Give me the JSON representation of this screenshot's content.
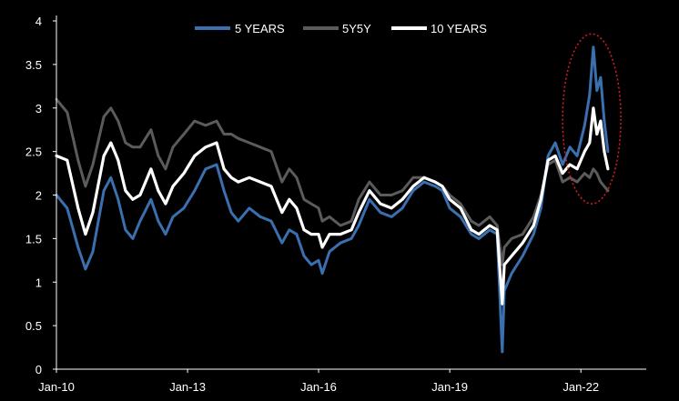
{
  "chart_data": {
    "type": "line",
    "title": "",
    "xlabel": "",
    "ylabel": "",
    "x_range": [
      "2010-01-01",
      "2023-07-01"
    ],
    "ylim": [
      0,
      4
    ],
    "yticks": [
      "0",
      "0.5",
      "1",
      "1.5",
      "2",
      "2.5",
      "3",
      "3.5",
      "4"
    ],
    "xticks": [
      {
        "label": "Jan-10",
        "date": "2010-01-01"
      },
      {
        "label": "Jan-13",
        "date": "2013-01-01"
      },
      {
        "label": "Jan-16",
        "date": "2016-01-01"
      },
      {
        "label": "Jan-19",
        "date": "2019-01-01"
      },
      {
        "label": "Jan-22",
        "date": "2022-01-01"
      }
    ],
    "grid": false,
    "legend_position": "top-center",
    "series": [
      {
        "name": "5 YEARS",
        "color": "#3a6fb0",
        "points": [
          [
            "2010-01-01",
            2.0
          ],
          [
            "2010-04-01",
            1.85
          ],
          [
            "2010-07-01",
            1.4
          ],
          [
            "2010-09-01",
            1.15
          ],
          [
            "2010-11-01",
            1.35
          ],
          [
            "2011-02-01",
            2.05
          ],
          [
            "2011-04-01",
            2.2
          ],
          [
            "2011-06-01",
            1.95
          ],
          [
            "2011-08-01",
            1.6
          ],
          [
            "2011-10-01",
            1.5
          ],
          [
            "2011-12-01",
            1.7
          ],
          [
            "2012-03-01",
            1.95
          ],
          [
            "2012-05-01",
            1.7
          ],
          [
            "2012-07-01",
            1.55
          ],
          [
            "2012-09-01",
            1.75
          ],
          [
            "2012-12-01",
            1.85
          ],
          [
            "2013-03-01",
            2.05
          ],
          [
            "2013-06-01",
            2.3
          ],
          [
            "2013-09-01",
            2.35
          ],
          [
            "2013-11-01",
            2.05
          ],
          [
            "2014-01-01",
            1.8
          ],
          [
            "2014-03-01",
            1.7
          ],
          [
            "2014-06-01",
            1.85
          ],
          [
            "2014-09-01",
            1.75
          ],
          [
            "2014-12-01",
            1.7
          ],
          [
            "2015-03-01",
            1.45
          ],
          [
            "2015-05-01",
            1.6
          ],
          [
            "2015-07-01",
            1.55
          ],
          [
            "2015-09-01",
            1.3
          ],
          [
            "2015-11-01",
            1.2
          ],
          [
            "2016-01-01",
            1.25
          ],
          [
            "2016-02-01",
            1.1
          ],
          [
            "2016-04-01",
            1.35
          ],
          [
            "2016-07-01",
            1.45
          ],
          [
            "2016-10-01",
            1.5
          ],
          [
            "2016-12-01",
            1.65
          ],
          [
            "2017-03-01",
            1.95
          ],
          [
            "2017-06-01",
            1.8
          ],
          [
            "2017-09-01",
            1.75
          ],
          [
            "2017-12-01",
            1.85
          ],
          [
            "2018-03-01",
            2.05
          ],
          [
            "2018-06-01",
            2.15
          ],
          [
            "2018-09-01",
            2.1
          ],
          [
            "2018-11-01",
            2.05
          ],
          [
            "2019-01-01",
            1.85
          ],
          [
            "2019-04-01",
            1.75
          ],
          [
            "2019-07-01",
            1.55
          ],
          [
            "2019-09-01",
            1.5
          ],
          [
            "2019-12-01",
            1.6
          ],
          [
            "2020-02-01",
            1.55
          ],
          [
            "2020-03-15",
            0.2
          ],
          [
            "2020-04-01",
            0.9
          ],
          [
            "2020-06-01",
            1.1
          ],
          [
            "2020-09-01",
            1.3
          ],
          [
            "2020-12-01",
            1.55
          ],
          [
            "2021-02-01",
            1.85
          ],
          [
            "2021-04-01",
            2.45
          ],
          [
            "2021-06-01",
            2.6
          ],
          [
            "2021-08-01",
            2.35
          ],
          [
            "2021-10-01",
            2.55
          ],
          [
            "2021-12-01",
            2.45
          ],
          [
            "2022-02-01",
            2.8
          ],
          [
            "2022-03-15",
            3.15
          ],
          [
            "2022-04-15",
            3.7
          ],
          [
            "2022-05-15",
            3.2
          ],
          [
            "2022-06-15",
            3.35
          ],
          [
            "2022-07-15",
            2.85
          ],
          [
            "2022-08-15",
            2.5
          ]
        ]
      },
      {
        "name": "5Y5Y",
        "color": "#5b5b5b",
        "points": [
          [
            "2010-01-01",
            3.1
          ],
          [
            "2010-04-01",
            2.95
          ],
          [
            "2010-07-01",
            2.4
          ],
          [
            "2010-09-01",
            2.1
          ],
          [
            "2010-11-01",
            2.35
          ],
          [
            "2011-02-01",
            2.9
          ],
          [
            "2011-04-01",
            3.0
          ],
          [
            "2011-06-01",
            2.85
          ],
          [
            "2011-08-01",
            2.6
          ],
          [
            "2011-10-01",
            2.55
          ],
          [
            "2011-12-01",
            2.55
          ],
          [
            "2012-03-01",
            2.75
          ],
          [
            "2012-05-01",
            2.45
          ],
          [
            "2012-07-01",
            2.3
          ],
          [
            "2012-09-01",
            2.55
          ],
          [
            "2012-12-01",
            2.7
          ],
          [
            "2013-03-01",
            2.85
          ],
          [
            "2013-06-01",
            2.8
          ],
          [
            "2013-09-01",
            2.85
          ],
          [
            "2013-11-01",
            2.7
          ],
          [
            "2014-01-01",
            2.7
          ],
          [
            "2014-03-01",
            2.65
          ],
          [
            "2014-06-01",
            2.6
          ],
          [
            "2014-09-01",
            2.55
          ],
          [
            "2014-12-01",
            2.5
          ],
          [
            "2015-03-01",
            2.15
          ],
          [
            "2015-05-01",
            2.3
          ],
          [
            "2015-07-01",
            2.2
          ],
          [
            "2015-09-01",
            1.95
          ],
          [
            "2015-11-01",
            1.9
          ],
          [
            "2016-01-01",
            1.85
          ],
          [
            "2016-02-01",
            1.7
          ],
          [
            "2016-04-01",
            1.75
          ],
          [
            "2016-07-01",
            1.65
          ],
          [
            "2016-10-01",
            1.7
          ],
          [
            "2016-12-01",
            1.95
          ],
          [
            "2017-03-01",
            2.15
          ],
          [
            "2017-06-01",
            2.0
          ],
          [
            "2017-09-01",
            2.0
          ],
          [
            "2017-12-01",
            2.05
          ],
          [
            "2018-03-01",
            2.2
          ],
          [
            "2018-06-01",
            2.2
          ],
          [
            "2018-09-01",
            2.15
          ],
          [
            "2018-11-01",
            2.1
          ],
          [
            "2019-01-01",
            2.0
          ],
          [
            "2019-04-01",
            1.9
          ],
          [
            "2019-07-01",
            1.7
          ],
          [
            "2019-09-01",
            1.65
          ],
          [
            "2019-12-01",
            1.75
          ],
          [
            "2020-02-01",
            1.65
          ],
          [
            "2020-03-15",
            1.2
          ],
          [
            "2020-04-01",
            1.4
          ],
          [
            "2020-06-01",
            1.5
          ],
          [
            "2020-09-01",
            1.55
          ],
          [
            "2020-12-01",
            1.75
          ],
          [
            "2021-02-01",
            2.0
          ],
          [
            "2021-04-01",
            2.35
          ],
          [
            "2021-06-01",
            2.4
          ],
          [
            "2021-08-01",
            2.15
          ],
          [
            "2021-10-01",
            2.2
          ],
          [
            "2021-12-01",
            2.15
          ],
          [
            "2022-02-01",
            2.25
          ],
          [
            "2022-03-15",
            2.2
          ],
          [
            "2022-04-15",
            2.3
          ],
          [
            "2022-05-15",
            2.25
          ],
          [
            "2022-06-15",
            2.15
          ],
          [
            "2022-07-15",
            2.1
          ],
          [
            "2022-08-15",
            2.05
          ]
        ]
      },
      {
        "name": "10 YEARS",
        "color": "#ffffff",
        "points": [
          [
            "2010-01-01",
            2.45
          ],
          [
            "2010-04-01",
            2.4
          ],
          [
            "2010-07-01",
            1.85
          ],
          [
            "2010-09-01",
            1.55
          ],
          [
            "2010-11-01",
            1.8
          ],
          [
            "2011-02-01",
            2.45
          ],
          [
            "2011-04-01",
            2.6
          ],
          [
            "2011-06-01",
            2.4
          ],
          [
            "2011-08-01",
            2.05
          ],
          [
            "2011-10-01",
            1.95
          ],
          [
            "2011-12-01",
            2.0
          ],
          [
            "2012-03-01",
            2.3
          ],
          [
            "2012-05-01",
            2.05
          ],
          [
            "2012-07-01",
            1.9
          ],
          [
            "2012-09-01",
            2.1
          ],
          [
            "2012-12-01",
            2.25
          ],
          [
            "2013-03-01",
            2.45
          ],
          [
            "2013-06-01",
            2.55
          ],
          [
            "2013-09-01",
            2.6
          ],
          [
            "2013-11-01",
            2.3
          ],
          [
            "2014-01-01",
            2.2
          ],
          [
            "2014-03-01",
            2.15
          ],
          [
            "2014-06-01",
            2.2
          ],
          [
            "2014-09-01",
            2.15
          ],
          [
            "2014-12-01",
            2.1
          ],
          [
            "2015-03-01",
            1.8
          ],
          [
            "2015-05-01",
            1.95
          ],
          [
            "2015-07-01",
            1.85
          ],
          [
            "2015-09-01",
            1.6
          ],
          [
            "2015-11-01",
            1.55
          ],
          [
            "2016-01-01",
            1.55
          ],
          [
            "2016-02-01",
            1.4
          ],
          [
            "2016-04-01",
            1.55
          ],
          [
            "2016-07-01",
            1.55
          ],
          [
            "2016-10-01",
            1.6
          ],
          [
            "2016-12-01",
            1.8
          ],
          [
            "2017-03-01",
            2.05
          ],
          [
            "2017-06-01",
            1.9
          ],
          [
            "2017-09-01",
            1.85
          ],
          [
            "2017-12-01",
            1.95
          ],
          [
            "2018-03-01",
            2.1
          ],
          [
            "2018-06-01",
            2.2
          ],
          [
            "2018-09-01",
            2.15
          ],
          [
            "2018-11-01",
            2.1
          ],
          [
            "2019-01-01",
            1.95
          ],
          [
            "2019-04-01",
            1.85
          ],
          [
            "2019-07-01",
            1.6
          ],
          [
            "2019-09-01",
            1.55
          ],
          [
            "2019-12-01",
            1.65
          ],
          [
            "2020-02-01",
            1.6
          ],
          [
            "2020-03-15",
            0.75
          ],
          [
            "2020-04-01",
            1.2
          ],
          [
            "2020-06-01",
            1.3
          ],
          [
            "2020-09-01",
            1.45
          ],
          [
            "2020-12-01",
            1.65
          ],
          [
            "2021-02-01",
            1.95
          ],
          [
            "2021-04-01",
            2.4
          ],
          [
            "2021-06-01",
            2.45
          ],
          [
            "2021-08-01",
            2.25
          ],
          [
            "2021-10-01",
            2.35
          ],
          [
            "2021-12-01",
            2.3
          ],
          [
            "2022-02-01",
            2.5
          ],
          [
            "2022-03-15",
            2.6
          ],
          [
            "2022-04-15",
            3.0
          ],
          [
            "2022-05-15",
            2.7
          ],
          [
            "2022-06-15",
            2.85
          ],
          [
            "2022-07-15",
            2.5
          ],
          [
            "2022-08-15",
            2.3
          ]
        ]
      }
    ],
    "annotation": {
      "shape": "ellipse",
      "style": "dotted",
      "color": "#cc1f1f",
      "x_range": [
        "2021-08-01",
        "2022-12-01"
      ],
      "y_range": [
        1.9,
        3.85
      ]
    }
  },
  "colors": {
    "background": "#000000",
    "axis": "#ffffff",
    "text": "#ffffff"
  }
}
